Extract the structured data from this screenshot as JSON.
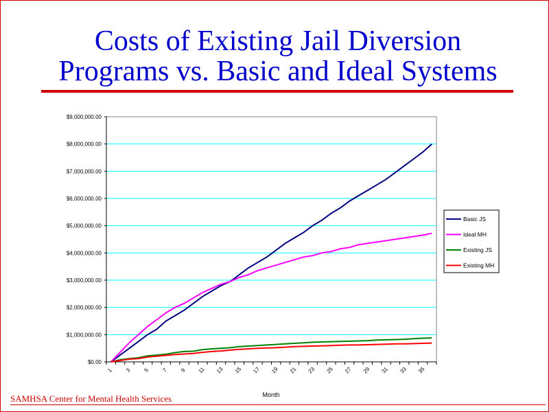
{
  "title_line1": "Costs of Existing Jail Diversion",
  "title_line2": "Programs vs. Basic and Ideal Systems",
  "footer": "SAMHSA Center for Mental Health Services",
  "colors": {
    "title": "#0000cc",
    "accent": "#cc0000",
    "grid": "#00ffff"
  },
  "chart_data": {
    "type": "line",
    "title": "",
    "xlabel": "Month",
    "ylabel": "",
    "ylim": [
      0,
      9000000
    ],
    "yticks": [
      "$0.00",
      "$1,000,000.00",
      "$2,000,000.00",
      "$3,000,000.00",
      "$4,000,000.00",
      "$5,000,000.00",
      "$6,000,000.00",
      "$7,000,000.00",
      "$8,000,000.00",
      "$9,000,000.00"
    ],
    "x": [
      1,
      2,
      3,
      4,
      5,
      6,
      7,
      8,
      9,
      10,
      11,
      12,
      13,
      14,
      15,
      16,
      17,
      18,
      19,
      20,
      21,
      22,
      23,
      24,
      25,
      26,
      27,
      28,
      29,
      30,
      31,
      32,
      33,
      34,
      35,
      36
    ],
    "xtick_labels": [
      "1",
      "3",
      "5",
      "7",
      "9",
      "11",
      "13",
      "15",
      "17",
      "19",
      "21",
      "23",
      "25",
      "27",
      "29",
      "31",
      "33",
      "35"
    ],
    "grid": true,
    "legend_placement": "right",
    "series": [
      {
        "name": "Basic JS",
        "color": "#000080",
        "values": [
          0,
          250000,
          500000,
          750000,
          1000000,
          1200000,
          1500000,
          1700000,
          1900000,
          2150000,
          2400000,
          2600000,
          2800000,
          2950000,
          3200000,
          3450000,
          3650000,
          3850000,
          4100000,
          4350000,
          4550000,
          4750000,
          5000000,
          5200000,
          5450000,
          5650000,
          5900000,
          6100000,
          6300000,
          6500000,
          6700000,
          6950000,
          7200000,
          7450000,
          7700000,
          8000000
        ]
      },
      {
        "name": "Ideal MH",
        "color": "#ff00ff",
        "values": [
          0,
          350000,
          700000,
          1000000,
          1300000,
          1550000,
          1800000,
          2000000,
          2150000,
          2350000,
          2550000,
          2700000,
          2850000,
          2950000,
          3100000,
          3200000,
          3350000,
          3450000,
          3550000,
          3650000,
          3750000,
          3850000,
          3900000,
          4000000,
          4050000,
          4150000,
          4200000,
          4300000,
          4350000,
          4400000,
          4450000,
          4500000,
          4550000,
          4600000,
          4650000,
          4720000
        ]
      },
      {
        "name": "Existing JS",
        "color": "#008000",
        "values": [
          0,
          80000,
          120000,
          150000,
          220000,
          250000,
          280000,
          340000,
          380000,
          390000,
          450000,
          480000,
          500000,
          520000,
          560000,
          580000,
          600000,
          620000,
          640000,
          660000,
          680000,
          700000,
          720000,
          730000,
          740000,
          750000,
          760000,
          770000,
          780000,
          800000,
          810000,
          820000,
          830000,
          850000,
          870000,
          880000
        ]
      },
      {
        "name": "Existing MH",
        "color": "#ff0000",
        "values": [
          0,
          50000,
          100000,
          120000,
          180000,
          210000,
          240000,
          270000,
          290000,
          310000,
          350000,
          380000,
          400000,
          430000,
          460000,
          480000,
          500000,
          510000,
          520000,
          540000,
          560000,
          570000,
          580000,
          590000,
          600000,
          610000,
          620000,
          620000,
          630000,
          640000,
          650000,
          660000,
          660000,
          670000,
          680000,
          690000
        ]
      }
    ]
  }
}
